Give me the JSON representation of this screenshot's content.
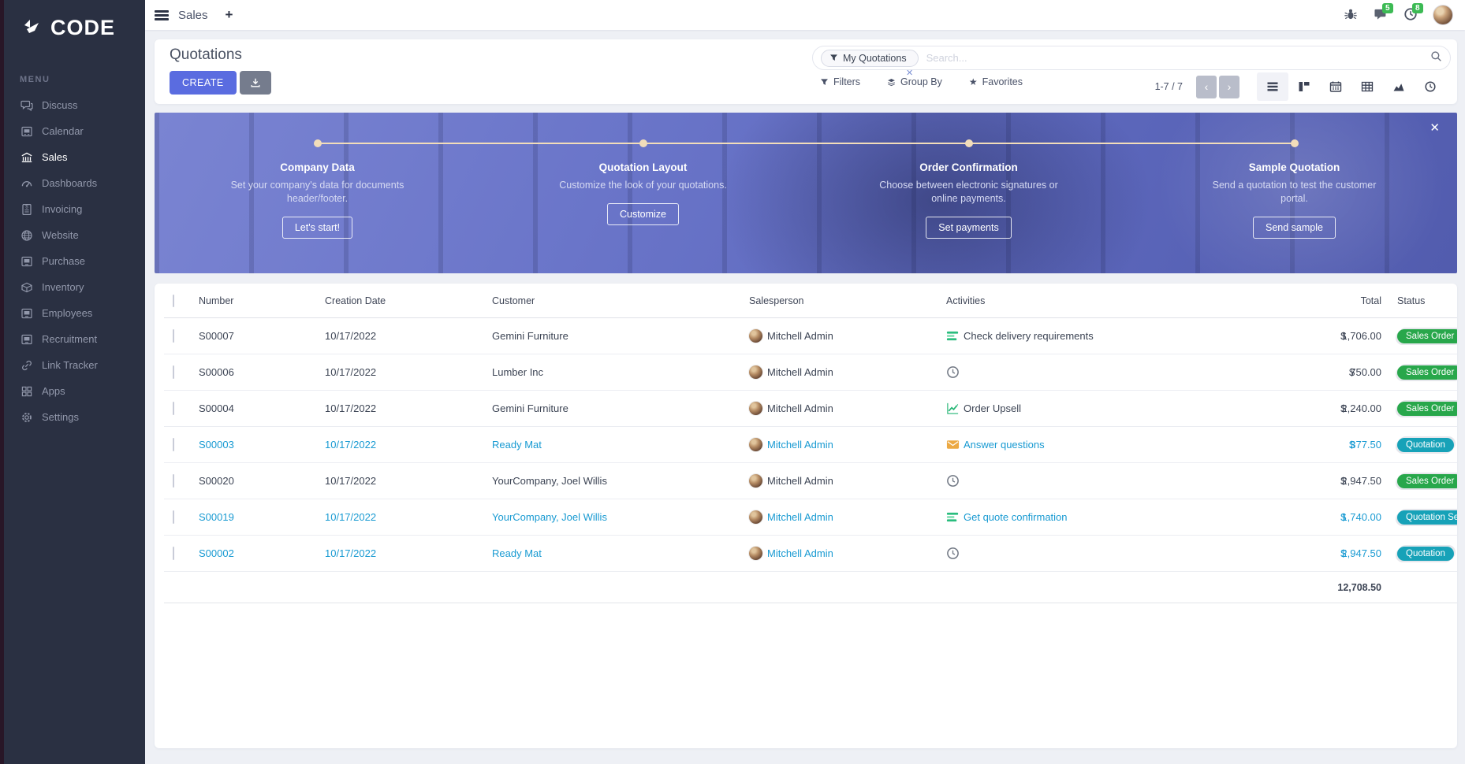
{
  "brand": {
    "logo_text": "CODE",
    "logo_icon": "code-arrows-icon"
  },
  "sidebar": {
    "menu_label": "MENU",
    "items": [
      {
        "label": "Discuss",
        "icon": "discuss-icon",
        "active": false
      },
      {
        "label": "Calendar",
        "icon": "calendar-icon",
        "active": false
      },
      {
        "label": "Sales",
        "icon": "sales-icon",
        "active": true
      },
      {
        "label": "Dashboards",
        "icon": "dashboards-icon",
        "active": false
      },
      {
        "label": "Invoicing",
        "icon": "invoicing-icon",
        "active": false
      },
      {
        "label": "Website",
        "icon": "website-icon",
        "active": false
      },
      {
        "label": "Purchase",
        "icon": "purchase-icon",
        "active": false
      },
      {
        "label": "Inventory",
        "icon": "inventory-icon",
        "active": false
      },
      {
        "label": "Employees",
        "icon": "employees-icon",
        "active": false
      },
      {
        "label": "Recruitment",
        "icon": "recruitment-icon",
        "active": false
      },
      {
        "label": "Link Tracker",
        "icon": "link-tracker-icon",
        "active": false
      },
      {
        "label": "Apps",
        "icon": "apps-icon",
        "active": false
      },
      {
        "label": "Settings",
        "icon": "settings-icon",
        "active": false
      }
    ]
  },
  "topbar": {
    "app_name": "Sales",
    "new_tab_label": "+",
    "icons": [
      "bug-icon",
      "chat-icon",
      "clock-icon",
      "avatar"
    ],
    "message_badge": "5",
    "activity_badge": "8",
    "badge_color": "#3cba54"
  },
  "control_panel": {
    "title": "Quotations",
    "create_label": "CREATE",
    "export_icon": "download-icon",
    "search": {
      "facet_label": "My Quotations",
      "facet_icon": "funnel-icon",
      "remove_label": "✕",
      "placeholder": "Search...",
      "search_icon": "search-icon"
    },
    "filters_label": "Filters",
    "group_by_label": "Group By",
    "favorites_label": "Favorites",
    "favorites_icon": "★",
    "pager": {
      "display": "1-7 / 7",
      "prev": "‹",
      "next": "›"
    },
    "views": [
      {
        "icon": "view-list-icon",
        "active": true
      },
      {
        "icon": "view-kanban-icon",
        "active": false
      },
      {
        "icon": "view-calendar-icon",
        "active": false
      },
      {
        "icon": "view-pivot-icon",
        "active": false
      },
      {
        "icon": "view-graph-icon",
        "active": false
      },
      {
        "icon": "view-activity-icon",
        "active": false
      }
    ]
  },
  "banner": {
    "close_label": "✕",
    "accent_line_color": "#f2ddba",
    "steps": [
      {
        "title": "Company Data",
        "desc": "Set your company's data for documents header/footer.",
        "button": "Let's start!"
      },
      {
        "title": "Quotation Layout",
        "desc": "Customize the look of your quotations.",
        "button": "Customize"
      },
      {
        "title": "Order Confirmation",
        "desc": "Choose between electronic signatures or online payments.",
        "button": "Set payments"
      },
      {
        "title": "Sample Quotation",
        "desc": "Send a quotation to test the customer portal.",
        "button": "Send sample"
      }
    ]
  },
  "table": {
    "headers": {
      "number": "Number",
      "creation_date": "Creation Date",
      "customer": "Customer",
      "salesperson": "Salesperson",
      "activities": "Activities",
      "total": "Total",
      "status": "Status"
    },
    "status_colors": {
      "sales_order": "#28a74b",
      "quotation": "#17a2b8"
    },
    "rows": [
      {
        "number": "S00007",
        "date": "10/17/2022",
        "customer": "Gemini Furniture",
        "salesperson": "Mitchell Admin",
        "activity_icon": "activity-list-icon",
        "activity": "Check delivery requirements",
        "currency": "$",
        "total": "1,706.00",
        "status": "Sales Order",
        "status_type": "green",
        "highlighted": false
      },
      {
        "number": "S00006",
        "date": "10/17/2022",
        "customer": "Lumber Inc",
        "salesperson": "Mitchell Admin",
        "activity_icon": "activity-clock-icon",
        "activity": "",
        "currency": "$",
        "total": "750.00",
        "status": "Sales Order",
        "status_type": "green",
        "highlighted": false
      },
      {
        "number": "S00004",
        "date": "10/17/2022",
        "customer": "Gemini Furniture",
        "salesperson": "Mitchell Admin",
        "activity_icon": "activity-chart-icon",
        "activity": "Order Upsell",
        "currency": "$",
        "total": "2,240.00",
        "status": "Sales Order",
        "status_type": "green",
        "highlighted": false
      },
      {
        "number": "S00003",
        "date": "10/17/2022",
        "customer": "Ready Mat",
        "salesperson": "Mitchell Admin",
        "activity_icon": "activity-envelope-icon",
        "activity": "Answer questions",
        "currency": "$",
        "total": "377.50",
        "status": "Quotation",
        "status_type": "teal",
        "highlighted": true
      },
      {
        "number": "S00020",
        "date": "10/17/2022",
        "customer": "YourCompany, Joel Willis",
        "salesperson": "Mitchell Admin",
        "activity_icon": "activity-clock-icon",
        "activity": "",
        "currency": "$",
        "total": "2,947.50",
        "status": "Sales Order",
        "status_type": "green",
        "highlighted": false
      },
      {
        "number": "S00019",
        "date": "10/17/2022",
        "customer": "YourCompany, Joel Willis",
        "salesperson": "Mitchell Admin",
        "activity_icon": "activity-list-icon",
        "activity": "Get quote confirmation",
        "currency": "$",
        "total": "1,740.00",
        "status": "Quotation Sent",
        "status_type": "teal",
        "highlighted": true
      },
      {
        "number": "S00002",
        "date": "10/17/2022",
        "customer": "Ready Mat",
        "salesperson": "Mitchell Admin",
        "activity_icon": "activity-clock-icon",
        "activity": "",
        "currency": "$",
        "total": "2,947.50",
        "status": "Quotation",
        "status_type": "teal",
        "highlighted": true
      }
    ],
    "footer_total": "12,708.50"
  }
}
